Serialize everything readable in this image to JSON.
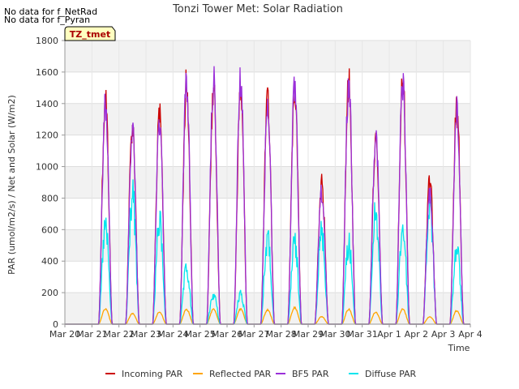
{
  "notes": [
    "No data for f_NetRad",
    "No data for f_Pyran"
  ],
  "chart_data": {
    "type": "line",
    "title": "Tonzi Tower Met: Solar Radiation",
    "xlabel": "Time",
    "ylabel": "PAR (umol/m2/s) / Net and Solar (W/m2)",
    "ylim": [
      0,
      1800
    ],
    "yticks": [
      0,
      200,
      400,
      600,
      800,
      1000,
      1200,
      1400,
      1600,
      1800
    ],
    "xlim": [
      0,
      15
    ],
    "xtick_labels": [
      "Mar 20",
      "Mar 21",
      "Mar 22",
      "Mar 23",
      "Mar 24",
      "Mar 25",
      "Mar 26",
      "Mar 27",
      "Mar 28",
      "Mar 29",
      "Mar 30",
      "Mar 31",
      "Apr 1",
      "Apr 2",
      "Apr 3",
      "Apr 4"
    ],
    "grid": true,
    "tz_label": "TZ_tmet",
    "legend_position": "bottom-center",
    "series": [
      {
        "name": "Incoming PAR",
        "color": "#cc0000",
        "daily_peaks": [
          1550,
          1360,
          1420,
          1640,
          1600,
          1600,
          1530,
          1600,
          960,
          1650,
          1240,
          1670,
          980,
          1480
        ],
        "noise": 0.15
      },
      {
        "name": "Reflected PAR",
        "color": "#ffa500",
        "daily_peaks": [
          100,
          70,
          80,
          100,
          100,
          100,
          95,
          110,
          50,
          100,
          80,
          100,
          50,
          90
        ],
        "noise": 0.1
      },
      {
        "name": "BF5 PAR",
        "color": "#9b30d9",
        "daily_peaks": [
          1500,
          1330,
          1400,
          1650,
          1660,
          1670,
          1500,
          1600,
          900,
          1640,
          1310,
          1660,
          900,
          1450
        ],
        "noise": 0.15
      },
      {
        "name": "Diffuse PAR",
        "color": "#00e5ee",
        "daily_peaks": [
          720,
          960,
          760,
          400,
          220,
          220,
          630,
          600,
          680,
          600,
          830,
          720,
          880,
          560
        ],
        "noise": 0.3
      }
    ]
  }
}
